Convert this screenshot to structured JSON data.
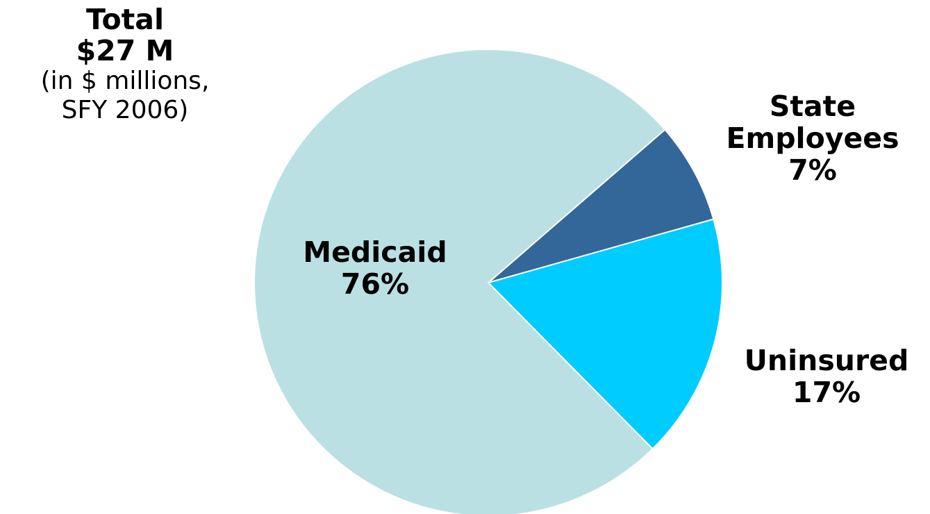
{
  "header": {
    "total_label": "Total",
    "total_value": "$27 M",
    "note_line1": "(in $ millions,",
    "note_line2": "SFY 2006)"
  },
  "chart_data": {
    "type": "pie",
    "start_angle_deg": 41,
    "direction": "clockwise",
    "slices": [
      {
        "name": "State Employees",
        "label_line1": "State",
        "label_line2": "Employees",
        "value": 7,
        "value_label": "7%",
        "color": "#336699"
      },
      {
        "name": "Uninsured",
        "label_line1": "Uninsured",
        "value": 17,
        "value_label": "17%",
        "color": "#00CCFF"
      },
      {
        "name": "Medicaid",
        "label_line1": "Medicaid",
        "value": 76,
        "value_label": "76%",
        "color": "#BBE0E3"
      }
    ]
  }
}
